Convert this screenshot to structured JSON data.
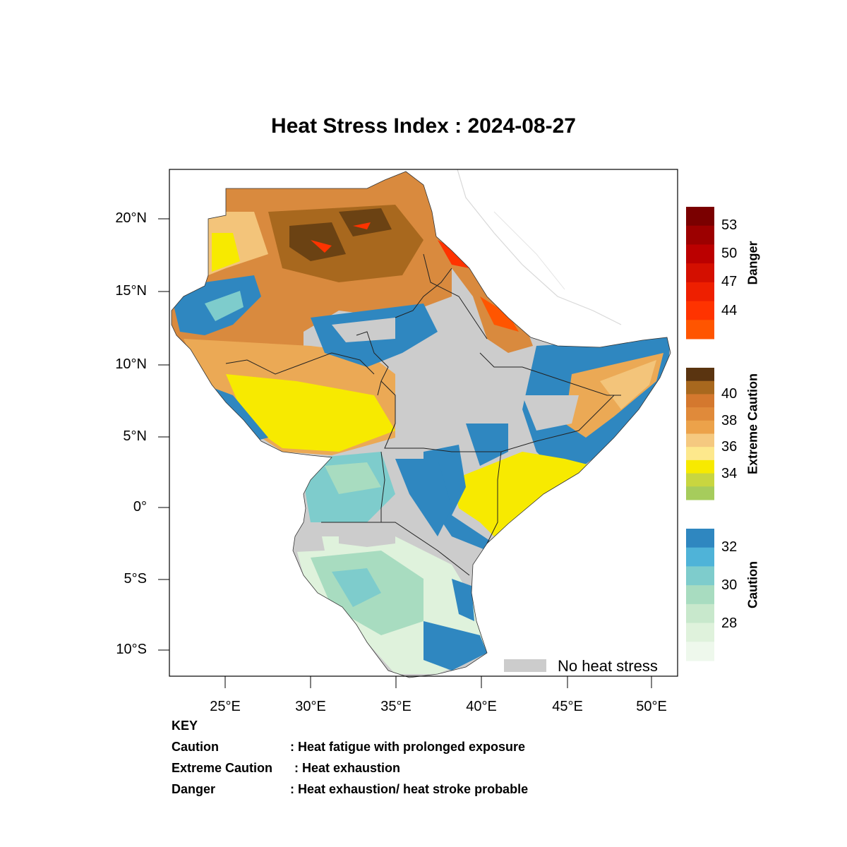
{
  "title": "Heat Stress Index : 2024-08-27",
  "axes": {
    "lat_ticks": [
      "20°N",
      "15°N",
      "10°N",
      "5°N",
      "0°",
      "5°S",
      "10°S"
    ],
    "lon_ticks": [
      "25°E",
      "30°E",
      "35°E",
      "40°E",
      "45°E",
      "50°E"
    ]
  },
  "legend": {
    "danger": {
      "title": "Danger",
      "ticks": [
        "53",
        "50",
        "47",
        "44"
      ],
      "colors": [
        "#7a0000",
        "#9c0000",
        "#bb0000",
        "#d40f00",
        "#ee1f00",
        "#ff3300",
        "#ff5500"
      ]
    },
    "extreme": {
      "title": "Extreme Caution",
      "ticks": [
        "40",
        "38",
        "36",
        "34"
      ],
      "colors": [
        "#5a3410",
        "#a8681e",
        "#d4782e",
        "#e08a3a",
        "#eca24a",
        "#f5c980",
        "#fde88c",
        "#f7ea00",
        "#c8d640",
        "#a6cc5c"
      ]
    },
    "caution": {
      "title": "Caution",
      "ticks": [
        "32",
        "30",
        "28"
      ],
      "colors": [
        "#2f87c0",
        "#4fb3d8",
        "#7ecccc",
        "#a8dcc0",
        "#c8e8cc",
        "#dff2dc",
        "#eef8ec"
      ]
    },
    "no_heat_stress": {
      "label": "No heat stress",
      "color": "#cccccc"
    }
  },
  "key": {
    "heading": "KEY",
    "items": [
      {
        "term": "Caution",
        "desc": ": Heat fatigue with prolonged exposure"
      },
      {
        "term": "Extreme Caution",
        "desc": ": Heat exhaustion"
      },
      {
        "term": "Danger",
        "desc": ": Heat exhaustion/ heat stroke probable"
      }
    ]
  },
  "map_colors": {
    "brown_dark": "#6b4213",
    "brown": "#a8681e",
    "orange": "#d98a3e",
    "light_orange": "#eba955",
    "peach": "#f3c47a",
    "yellow": "#f7ea00",
    "blue": "#2f87c0",
    "lightblue": "#4fb3d8",
    "teal": "#7ecccc",
    "green": "#a8dcc0",
    "pale": "#dff2dc",
    "gray": "#cccccc",
    "red": "#ff3300"
  }
}
